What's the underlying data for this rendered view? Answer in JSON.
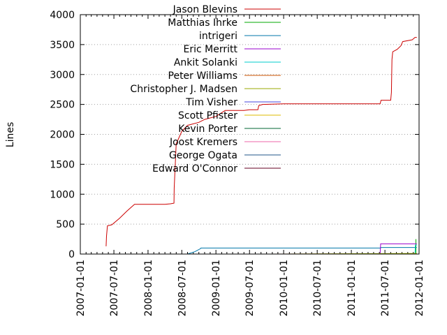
{
  "chart_data": {
    "type": "line",
    "title": "",
    "xlabel": "",
    "ylabel": "Lines",
    "ylim": [
      0,
      4000
    ],
    "xlim": [
      "2007-01-01",
      "2012-01-01"
    ],
    "y_ticks": [
      "0",
      "500",
      "1000",
      "1500",
      "2000",
      "2500",
      "3000",
      "3500",
      "4000"
    ],
    "x_ticks": [
      "2007-01-01",
      "2007-07-01",
      "2008-01-01",
      "2008-07-01",
      "2009-01-01",
      "2009-07-01",
      "2010-01-01",
      "2010-07-01",
      "2011-01-01",
      "2011-07-01",
      "2012-01-01"
    ],
    "grid": "horizontal dotted",
    "legend_position": "top-left",
    "series": [
      {
        "name": "Jason Blevins",
        "color": "#cc0000",
        "points": [
          [
            "2007-05-20",
            130
          ],
          [
            "2007-05-22",
            300
          ],
          [
            "2007-05-27",
            470
          ],
          [
            "2007-06-20",
            490
          ],
          [
            "2007-08-01",
            600
          ],
          [
            "2007-09-10",
            720
          ],
          [
            "2007-10-20",
            830
          ],
          [
            "2007-12-01",
            830
          ],
          [
            "2008-02-01",
            830
          ],
          [
            "2008-04-01",
            830
          ],
          [
            "2008-05-01",
            840
          ],
          [
            "2008-05-20",
            850
          ],
          [
            "2008-05-21",
            1100
          ],
          [
            "2008-06-01",
            1850
          ],
          [
            "2008-06-05",
            1870
          ],
          [
            "2008-07-01",
            2050
          ],
          [
            "2008-08-01",
            2150
          ],
          [
            "2008-10-01",
            2200
          ],
          [
            "2008-11-01",
            2250
          ],
          [
            "2009-01-01",
            2300
          ],
          [
            "2009-02-20",
            2400
          ],
          [
            "2009-06-01",
            2400
          ],
          [
            "2009-07-01",
            2410
          ],
          [
            "2009-08-15",
            2410
          ],
          [
            "2009-08-20",
            2480
          ],
          [
            "2009-09-10",
            2500
          ],
          [
            "2010-01-01",
            2510
          ],
          [
            "2010-07-01",
            2510
          ],
          [
            "2011-01-01",
            2510
          ],
          [
            "2011-06-05",
            2510
          ],
          [
            "2011-06-10",
            2570
          ],
          [
            "2011-08-01",
            2570
          ],
          [
            "2011-08-05",
            2700
          ],
          [
            "2011-08-08",
            3250
          ],
          [
            "2011-08-12",
            3380
          ],
          [
            "2011-09-05",
            3420
          ],
          [
            "2011-09-25",
            3480
          ],
          [
            "2011-10-05",
            3550
          ],
          [
            "2011-11-25",
            3580
          ],
          [
            "2011-12-10",
            3620
          ],
          [
            "2011-12-20",
            3620
          ]
        ]
      },
      {
        "name": "Matthias Ihrke",
        "color": "#00aa00",
        "points": [
          [
            "2011-12-13",
            0
          ],
          [
            "2011-12-15",
            0
          ],
          [
            "2011-12-15",
            250
          ]
        ]
      },
      {
        "name": "intrigeri",
        "color": "#0077aa",
        "points": [
          [
            "2008-08-01",
            0
          ],
          [
            "2008-09-10",
            40
          ],
          [
            "2008-10-10",
            90
          ],
          [
            "2008-10-12",
            100
          ],
          [
            "2011-06-08",
            100
          ],
          [
            "2011-06-10",
            110
          ],
          [
            "2011-12-20",
            110
          ]
        ]
      },
      {
        "name": "Eric Merritt",
        "color": "#9900cc",
        "points": [
          [
            "2011-06-01",
            0
          ],
          [
            "2011-06-05",
            0
          ],
          [
            "2011-06-08",
            170
          ],
          [
            "2011-12-20",
            170
          ]
        ]
      },
      {
        "name": "Ankit Solanki",
        "color": "#00cccc",
        "points": [
          [
            "2011-11-20",
            0
          ],
          [
            "2011-12-10",
            10
          ],
          [
            "2011-12-12",
            150
          ],
          [
            "2011-12-20",
            150
          ]
        ]
      },
      {
        "name": "Peter Williams",
        "color": "#cc5500",
        "points": [
          [
            "2009-09-20",
            0
          ],
          [
            "2011-12-20",
            5
          ]
        ]
      },
      {
        "name": "Christopher J. Madsen",
        "color": "#99aa00",
        "points": [
          [
            "2010-01-01",
            0
          ],
          [
            "2011-12-20",
            10
          ]
        ]
      },
      {
        "name": "Tim Visher",
        "color": "#4444dd",
        "points": [
          [
            "2011-07-01",
            0
          ],
          [
            "2011-12-20",
            0
          ]
        ]
      },
      {
        "name": "Scott Pfister",
        "color": "#ddbb00",
        "points": [
          [
            "2011-08-01",
            0
          ],
          [
            "2011-12-20",
            0
          ]
        ]
      },
      {
        "name": "Kevin Porter",
        "color": "#006633",
        "points": [
          [
            "2011-10-01",
            0
          ],
          [
            "2011-12-20",
            0
          ]
        ]
      },
      {
        "name": "Joost Kremers",
        "color": "#ee66aa",
        "points": [
          [
            "2011-11-01",
            0
          ],
          [
            "2011-12-20",
            0
          ]
        ]
      },
      {
        "name": "George Ogata",
        "color": "#225588",
        "points": [
          [
            "2011-11-15",
            0
          ],
          [
            "2011-12-20",
            0
          ]
        ]
      },
      {
        "name": "Edward O'Connor",
        "color": "#660022",
        "points": [
          [
            "2011-12-01",
            0
          ],
          [
            "2011-12-20",
            0
          ]
        ]
      }
    ]
  }
}
